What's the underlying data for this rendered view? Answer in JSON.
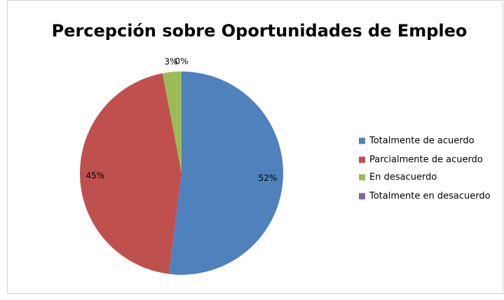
{
  "chart_data": {
    "type": "pie",
    "title": "Percepción sobre Oportunidades de Empleo",
    "categories": [
      "Totalmente de acuerdo",
      "Parcialmente de acuerdo",
      "En desacuerdo",
      "Totalmente en desacuerdo"
    ],
    "values": [
      52,
      45,
      3,
      0
    ],
    "value_labels": [
      "52%",
      "45%",
      "3%",
      "0%"
    ],
    "colors": [
      "#4f81bd",
      "#c0504d",
      "#9bbb59",
      "#8064a2"
    ],
    "legend": "right"
  }
}
